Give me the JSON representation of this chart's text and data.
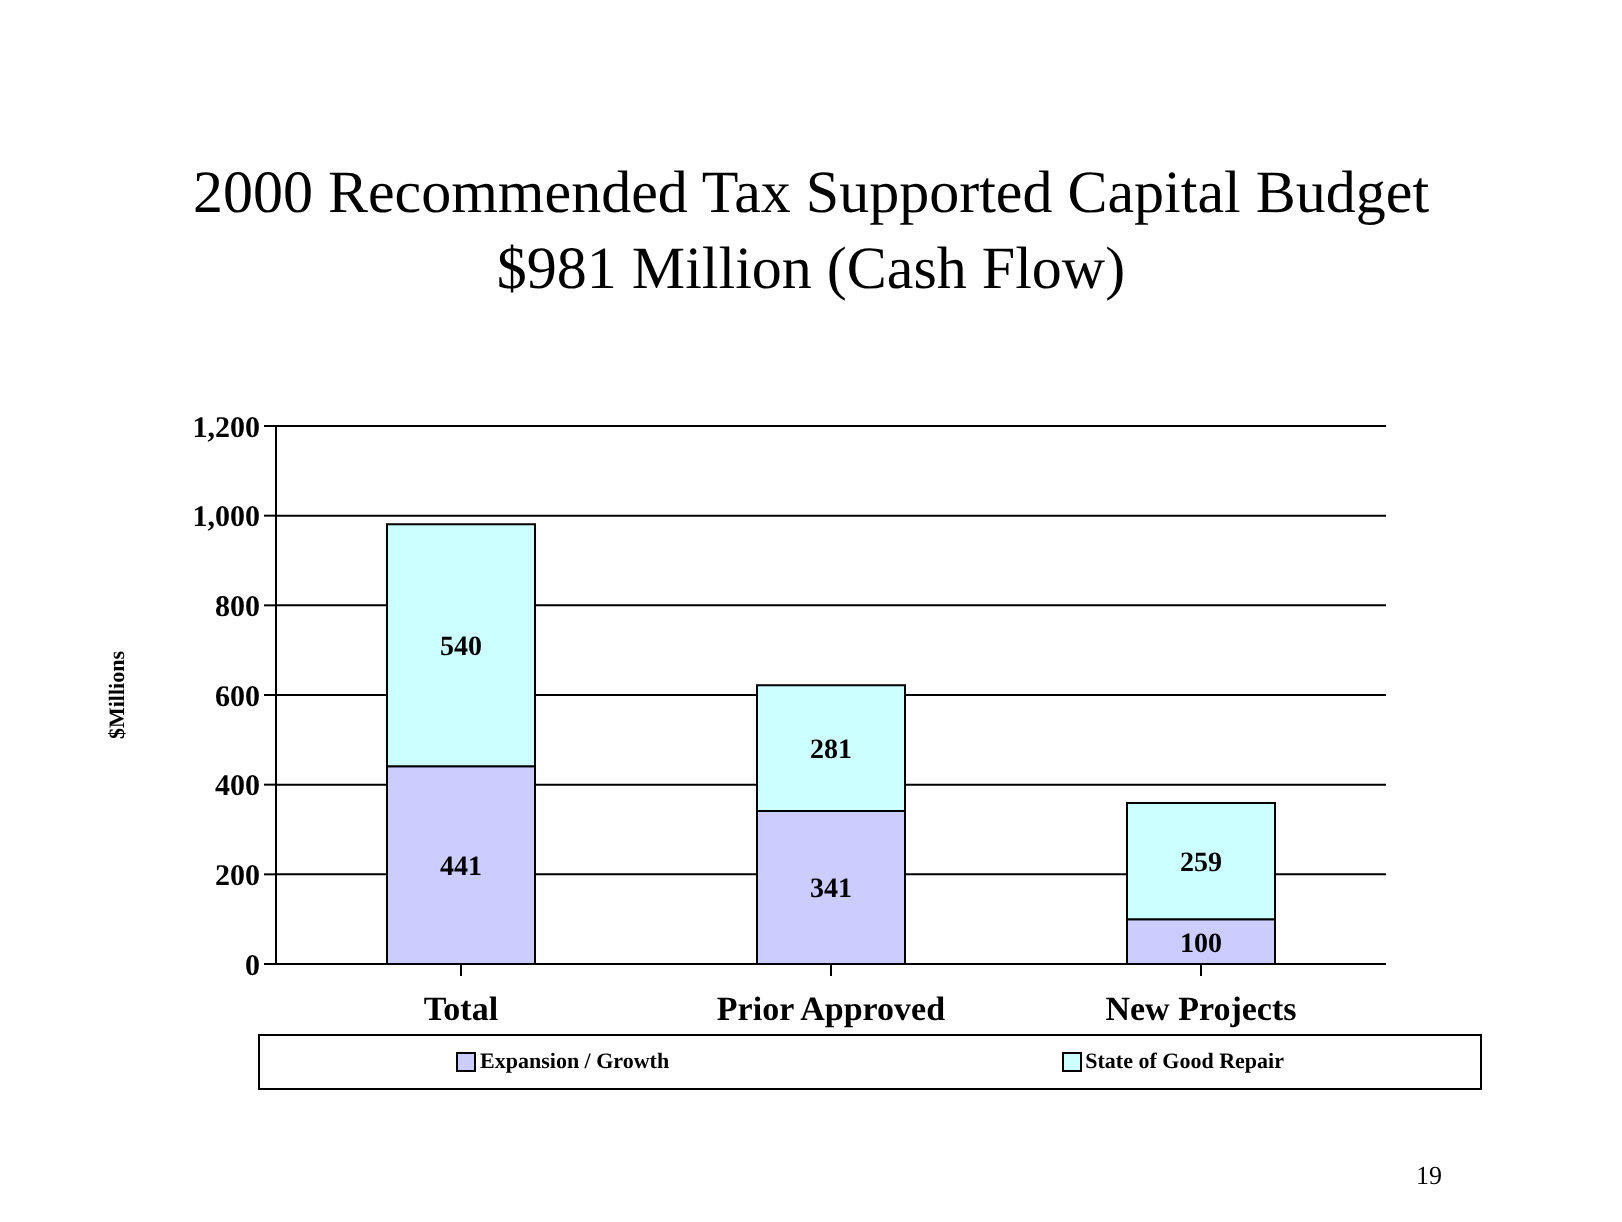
{
  "chart_data": {
    "type": "bar",
    "title": "2000 Recommended Tax Supported Capital Budget",
    "subtitle": "$981 Million (Cash Flow)",
    "ylabel": "$Millions",
    "categories": [
      "Total",
      "Prior Approved",
      "New Projects"
    ],
    "series": [
      {
        "name": "Expansion / Growth",
        "color": "#ccccff",
        "values": [
          441,
          341,
          100
        ]
      },
      {
        "name": "State of Good Repair",
        "color": "#ccffff",
        "values": [
          540,
          281,
          259
        ]
      }
    ],
    "stacked": true,
    "ylim": [
      0,
      1200
    ],
    "yticks": [
      0,
      200,
      400,
      600,
      800,
      {
        "value": 1000,
        "label": "1,000"
      },
      {
        "value": 1200,
        "label": "1,200"
      }
    ],
    "grid": "y",
    "legend": "bottom",
    "data_labels": true,
    "annotations": [
      "19"
    ]
  }
}
